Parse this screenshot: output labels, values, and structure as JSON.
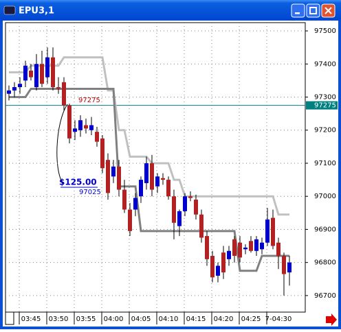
{
  "chart_data": {
    "type": "candlestick",
    "title": "EPU3,1",
    "categories": [
      null,
      null,
      null,
      null,
      "03:45",
      null,
      null,
      null,
      null,
      "03:50",
      null,
      null,
      null,
      null,
      "03:55",
      null,
      null,
      null,
      null,
      "04:00",
      null,
      null,
      null,
      null,
      "04:05",
      null,
      null,
      null,
      null,
      "04:10",
      null,
      null,
      null,
      null,
      "04:15",
      null,
      null,
      null,
      null,
      "04:20",
      null,
      null,
      null,
      null,
      "04:25",
      null,
      null,
      null,
      null,
      "7-04:30",
      null,
      null
    ],
    "open": [
      97310,
      97320,
      97330,
      97350,
      97380,
      97330,
      97400,
      97360,
      97420,
      97330,
      97345,
      97275,
      97195,
      97200,
      97215,
      97200,
      97195,
      97175,
      97110,
      97060,
      97090,
      97020,
      96960,
      96960,
      97000,
      97040,
      97100,
      97030,
      97055,
      97050,
      97000,
      96910,
      96955,
      97000,
      96990,
      96945,
      96880,
      96820,
      96760,
      96830,
      96810,
      96870,
      96860,
      96840,
      96865,
      96835,
      96840,
      96860,
      96935,
      96860,
      96820,
      96770
    ],
    "high": [
      97335,
      97345,
      97360,
      97410,
      97400,
      97430,
      97440,
      97450,
      97450,
      97360,
      97360,
      97280,
      97230,
      97245,
      97235,
      97240,
      97210,
      97185,
      97130,
      97110,
      97110,
      97050,
      96980,
      97010,
      97060,
      97120,
      97125,
      97070,
      97070,
      97060,
      97020,
      96960,
      97010,
      97015,
      97005,
      96960,
      96895,
      96835,
      96800,
      96850,
      96850,
      96880,
      96880,
      96855,
      96880,
      96880,
      96875,
      96965,
      96960,
      96875,
      96830,
      96820
    ],
    "low": [
      97290,
      97300,
      97310,
      97330,
      97350,
      97320,
      97330,
      97340,
      97320,
      97310,
      97260,
      97160,
      97170,
      97180,
      97190,
      97185,
      97150,
      97070,
      96990,
      97040,
      97000,
      96950,
      96880,
      96940,
      96980,
      97020,
      97000,
      97010,
      97035,
      96990,
      96870,
      96880,
      96940,
      96985,
      96930,
      96860,
      96790,
      96740,
      96740,
      96750,
      96790,
      96800,
      96800,
      96825,
      96830,
      96820,
      96825,
      96850,
      96840,
      96780,
      96700,
      96730
    ],
    "close": [
      97320,
      97330,
      97340,
      97395,
      97360,
      97400,
      97340,
      97420,
      97330,
      97325,
      97275,
      97175,
      97205,
      97230,
      97205,
      97215,
      97165,
      97085,
      97010,
      97090,
      97020,
      96960,
      96895,
      96995,
      97050,
      97100,
      97020,
      97060,
      97050,
      97000,
      96920,
      96955,
      97000,
      96995,
      96945,
      96875,
      96810,
      96755,
      96790,
      96770,
      96835,
      96820,
      96815,
      96845,
      96835,
      96870,
      96860,
      96930,
      96850,
      96820,
      96765,
      96800
    ],
    "up_color": "#0000cc",
    "down_color": "#b22222",
    "series": [
      {
        "color": "#c0c0c0",
        "values": [
          97375,
          97375,
          97375,
          97375,
          97395,
          97395,
          97395,
          97395,
          97395,
          97395,
          97420,
          97420,
          97420,
          97420,
          97420,
          97420,
          97420,
          97420,
          97320,
          97320,
          97200,
          97200,
          97120,
          97120,
          97120,
          97120,
          97100,
          97100,
          97100,
          97100,
          97050,
          97050,
          97000,
          97000,
          97000,
          97000,
          97000,
          97000,
          97000,
          97000,
          97000,
          97000,
          97000,
          97000,
          97000,
          97000,
          97000,
          97000,
          97000,
          96945,
          96945,
          96945
        ]
      },
      {
        "color": "#808080",
        "values": [
          97300,
          97300,
          97300,
          97300,
          97325,
          97325,
          97325,
          97325,
          97325,
          97325,
          97325,
          97325,
          97325,
          97325,
          97325,
          97325,
          97325,
          97325,
          97325,
          97325,
          97030,
          97030,
          97030,
          97030,
          96895,
          96895,
          96895,
          96895,
          96895,
          96895,
          96895,
          96895,
          96895,
          96895,
          96895,
          96895,
          96895,
          96895,
          96895,
          96895,
          96895,
          96895,
          96775,
          96775,
          96775,
          96775,
          96820,
          96820,
          96820,
          96820,
          96820,
          96820
        ]
      }
    ],
    "ylim": [
      96650,
      97525
    ],
    "yticks": [
      96700,
      96800,
      96900,
      97000,
      97100,
      97200,
      97300,
      97400,
      97500
    ],
    "grid": true,
    "hline": {
      "value": 97275,
      "color": "#008080"
    },
    "annotations": [
      {
        "text": "97275",
        "color": "#c00000"
      },
      {
        "text": "$125.00",
        "color": "#0000cc"
      },
      {
        "text": "97025",
        "color": "#0000cc"
      }
    ]
  }
}
